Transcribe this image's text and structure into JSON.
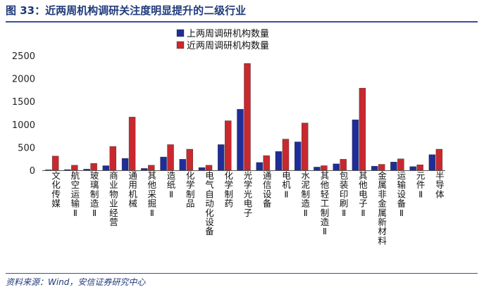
{
  "header": {
    "title": "图 33：近两周机构调研关注度明显提升的二级行业"
  },
  "footer": {
    "source": "资料来源：Wind，安信证券研究中心"
  },
  "colors": {
    "prev": "#1f2d9a",
    "recent": "#c9282e",
    "accent": "#1f3a7a"
  },
  "chart_data": {
    "type": "bar",
    "categories": [
      "文化传媒",
      "航空运输Ⅱ",
      "玻璃制造Ⅱ",
      "商业物业经营",
      "通用机械",
      "其他采掘Ⅱ",
      "造纸Ⅱ",
      "化学制品",
      "电气自动化设备",
      "化学制药",
      "光学光电子",
      "通信设备",
      "电机Ⅱ",
      "水泥制造Ⅱ",
      "其他轻工制造Ⅱ",
      "包装印刷Ⅱ",
      "其他电子Ⅱ",
      "金属非金属新材料",
      "运输设备Ⅱ",
      "元件Ⅱ",
      "半导体"
    ],
    "series": [
      {
        "name": "上两周调研机构数量",
        "values": [
          10,
          15,
          25,
          100,
          260,
          40,
          290,
          240,
          60,
          560,
          1330,
          170,
          410,
          620,
          70,
          140,
          1100,
          90,
          180,
          80,
          340
        ]
      },
      {
        "name": "近两周调研机构数量",
        "values": [
          310,
          110,
          150,
          520,
          1160,
          110,
          560,
          460,
          110,
          1080,
          2330,
          320,
          680,
          1030,
          100,
          240,
          1790,
          130,
          250,
          120,
          460
        ]
      }
    ],
    "yticks": [
      0,
      500,
      1000,
      1500,
      2000,
      2500
    ],
    "ylim": [
      0,
      2500
    ],
    "grid": false,
    "legend_position": "top-center"
  }
}
